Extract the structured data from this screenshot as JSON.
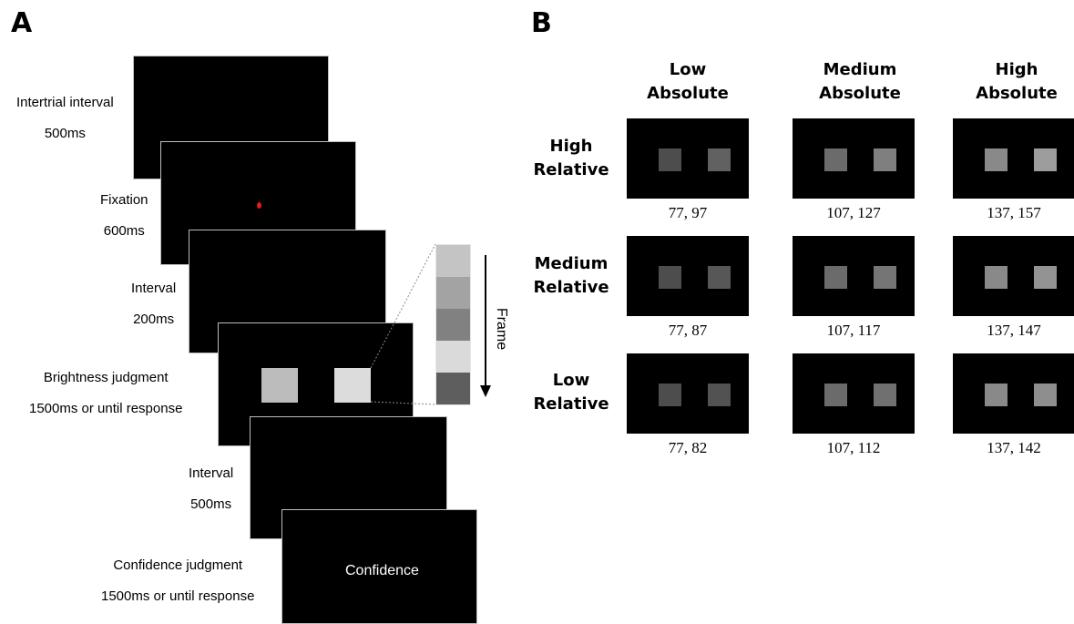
{
  "panels": {
    "a": "A",
    "b": "B"
  },
  "panel_a": {
    "steps": [
      {
        "name": "Intertrial interval",
        "duration": "500ms"
      },
      {
        "name": "Fixation",
        "duration": "600ms"
      },
      {
        "name": "Interval",
        "duration": "200ms"
      },
      {
        "name": "Brightness judgment",
        "duration": "1500ms or until response"
      },
      {
        "name": "Interval",
        "duration": "500ms"
      },
      {
        "name": "Confidence judgment",
        "duration": "1500ms or until response"
      }
    ],
    "fixation_color": "#e21b1b",
    "stimulus_colors": [
      "#bcbcbc",
      "#dcdcdc"
    ],
    "frame_strip_colors": [
      "#c4c4c4",
      "#a3a3a3",
      "#818181",
      "#dadada",
      "#5e5e5e"
    ],
    "frame_label": "Frame",
    "confidence_text": "Confidence"
  },
  "panel_b": {
    "columns": [
      "Low\nAbsolute",
      "Medium\nAbsolute",
      "High\nAbsolute"
    ],
    "rows": [
      "High\nRelative",
      "Medium\nRelative",
      "Low\nRelative"
    ],
    "values": [
      [
        "77, 97",
        "107, 127",
        "137, 157"
      ],
      [
        "77, 87",
        "107, 117",
        "137, 147"
      ],
      [
        "77, 82",
        "107, 112",
        "137, 142"
      ]
    ],
    "square_colors": [
      [
        [
          "#4d4d4d",
          "#616161"
        ],
        [
          "#6b6b6b",
          "#7f7f7f"
        ],
        [
          "#898989",
          "#9d9d9d"
        ]
      ],
      [
        [
          "#4d4d4d",
          "#575757"
        ],
        [
          "#6b6b6b",
          "#757575"
        ],
        [
          "#898989",
          "#939393"
        ]
      ],
      [
        [
          "#4d4d4d",
          "#525252"
        ],
        [
          "#6b6b6b",
          "#707070"
        ],
        [
          "#898989",
          "#8e8e8e"
        ]
      ]
    ]
  }
}
